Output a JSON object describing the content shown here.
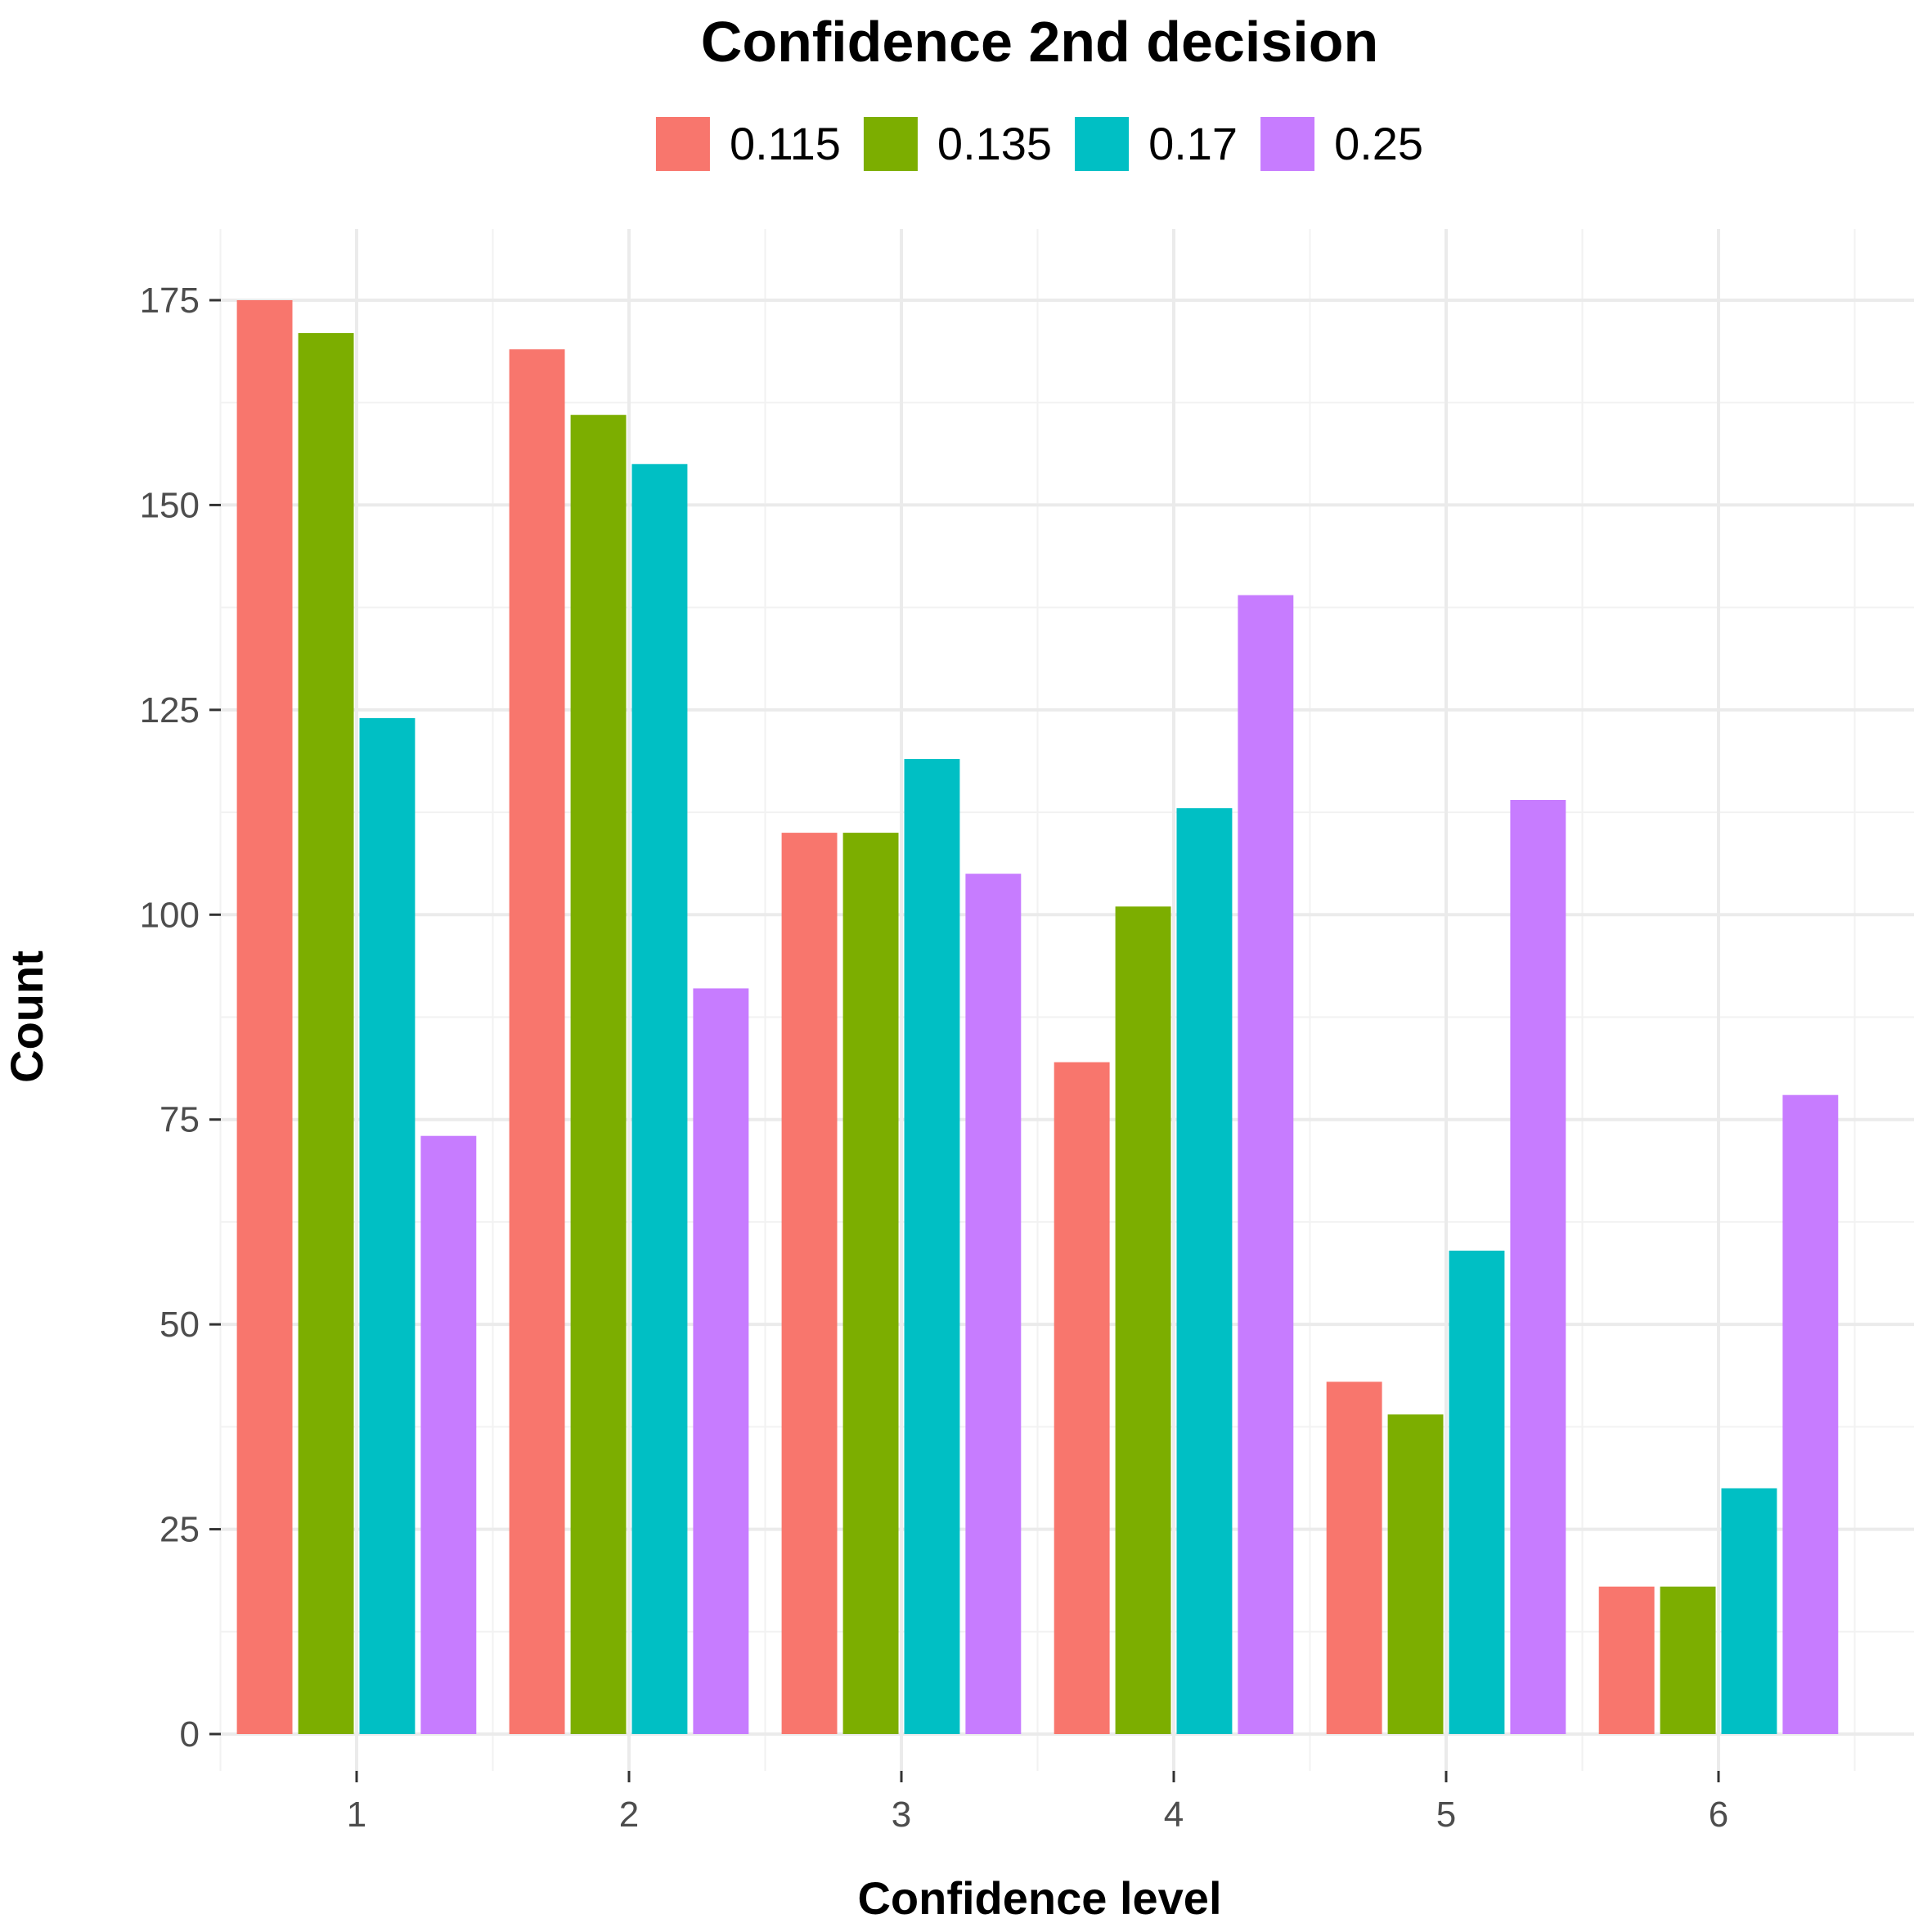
{
  "chart_data": {
    "type": "bar",
    "title": "Confidence 2nd decision",
    "xlabel": "Confidence level",
    "ylabel": "Count",
    "categories": [
      "1",
      "2",
      "3",
      "4",
      "5",
      "6"
    ],
    "series": [
      {
        "name": "0.115",
        "color": "#F8766D",
        "values": [
          175,
          169,
          110,
          82,
          43,
          18
        ]
      },
      {
        "name": "0.135",
        "color": "#7CAE00",
        "values": [
          171,
          161,
          110,
          101,
          39,
          18
        ]
      },
      {
        "name": "0.17",
        "color": "#00BFC4",
        "values": [
          124,
          155,
          119,
          113,
          59,
          30
        ]
      },
      {
        "name": "0.25",
        "color": "#C77CFF",
        "values": [
          73,
          91,
          105,
          139,
          114,
          78
        ]
      }
    ],
    "yticks": [
      "0",
      "25",
      "50",
      "75",
      "100",
      "125",
      "150",
      "175"
    ],
    "ylim": [
      0,
      184
    ],
    "legend_position": "top",
    "grid": true
  }
}
